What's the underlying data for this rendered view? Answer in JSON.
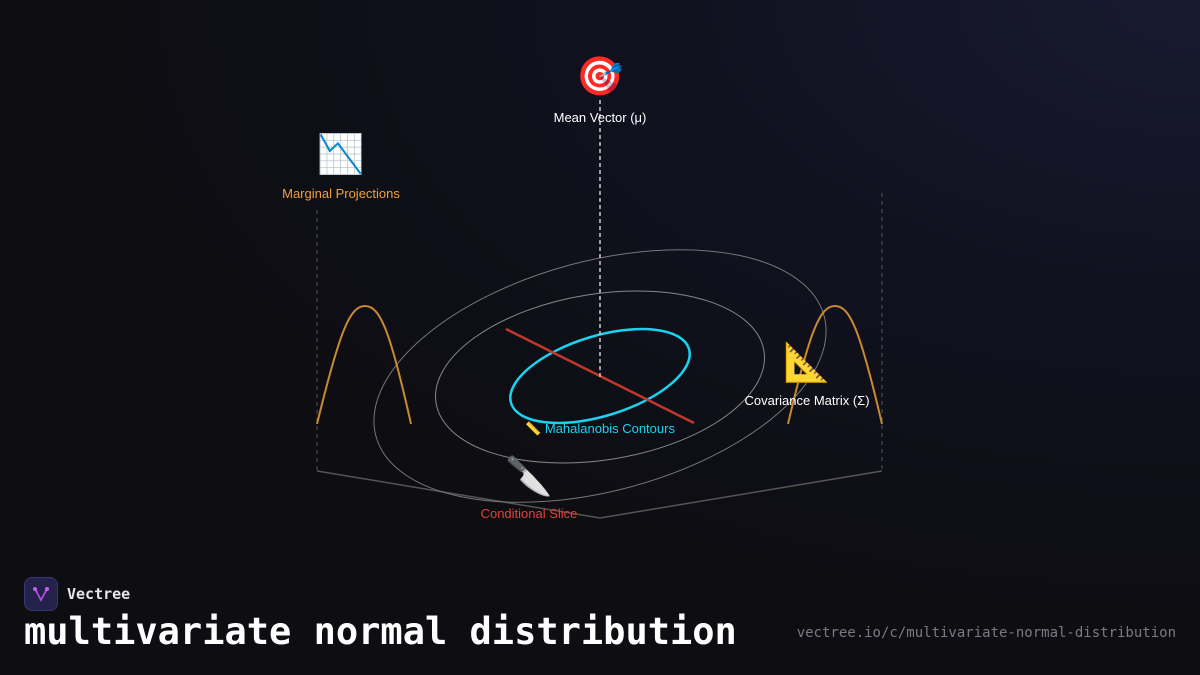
{
  "labels": {
    "mean": "Mean Vector (μ)",
    "marginal": "Marginal Projections",
    "covariance": "Covariance Matrix (Σ)",
    "mahalanobis": "Mahalanobis Contours",
    "conditional": "Conditional Slice"
  },
  "icons": {
    "mean": "🎯",
    "marginal": "📉",
    "covariance": "📐",
    "mahalanobis": "📏",
    "conditional": "🔪"
  },
  "colors": {
    "mean": "#ffffff",
    "marginal": "#f0a040",
    "covariance": "#ffffff",
    "mahalanobis": "#19d3f0",
    "conditional": "#e0443a",
    "contour_inner": "#19d3f0",
    "slice_line": "#c0392b",
    "marginal_curve": "#c88a30"
  },
  "brand": {
    "name": "Vectree"
  },
  "title": "multivariate normal distribution",
  "url": "vectree.io/c/multivariate-normal-distribution"
}
